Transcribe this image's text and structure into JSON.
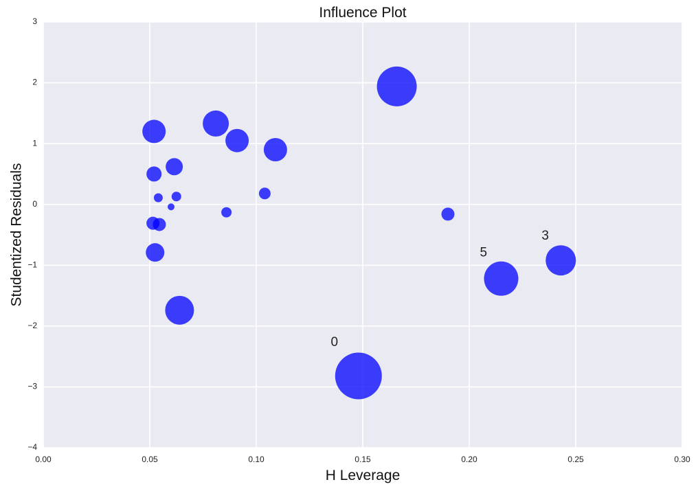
{
  "chart_data": {
    "type": "scatter",
    "title": "Influence Plot",
    "xlabel": "H Leverage",
    "ylabel": "Studentized Residuals",
    "xlim": [
      0.0,
      0.3
    ],
    "ylim": [
      -4,
      3
    ],
    "xticks": [
      0.0,
      0.05,
      0.1,
      0.15,
      0.2,
      0.25,
      0.3
    ],
    "xtick_labels": [
      "0.00",
      "0.05",
      "0.10",
      "0.15",
      "0.20",
      "0.25",
      "0.30"
    ],
    "yticks": [
      -4,
      -3,
      -2,
      -1,
      0,
      1,
      2,
      3
    ],
    "ytick_labels": [
      "−4",
      "−3",
      "−2",
      "−1",
      "0",
      "1",
      "2",
      "3"
    ],
    "grid": true,
    "colors": {
      "background": "#eaeaf2",
      "grid": "#ffffff",
      "marker": "#0000ff"
    },
    "marker_alpha": 0.75,
    "series": [
      {
        "points": [
          {
            "x": 0.148,
            "y": -2.82,
            "size": 34
          },
          {
            "x": 0.166,
            "y": 1.94,
            "size": 29
          },
          {
            "x": 0.215,
            "y": -1.22,
            "size": 25
          },
          {
            "x": 0.243,
            "y": -0.92,
            "size": 22
          },
          {
            "x": 0.081,
            "y": 1.33,
            "size": 19
          },
          {
            "x": 0.064,
            "y": -1.74,
            "size": 21
          },
          {
            "x": 0.052,
            "y": 1.2,
            "size": 17
          },
          {
            "x": 0.091,
            "y": 1.05,
            "size": 17
          },
          {
            "x": 0.109,
            "y": 0.9,
            "size": 17
          },
          {
            "x": 0.0615,
            "y": 0.62,
            "size": 12.5
          },
          {
            "x": 0.052,
            "y": 0.5,
            "size": 11
          },
          {
            "x": 0.0525,
            "y": -0.79,
            "size": 13.5
          },
          {
            "x": 0.0515,
            "y": -0.31,
            "size": 9.5
          },
          {
            "x": 0.0545,
            "y": -0.33,
            "size": 9.5
          },
          {
            "x": 0.054,
            "y": 0.11,
            "size": 6.5
          },
          {
            "x": 0.0625,
            "y": 0.13,
            "size": 7
          },
          {
            "x": 0.06,
            "y": -0.04,
            "size": 5
          },
          {
            "x": 0.086,
            "y": -0.13,
            "size": 7.5
          },
          {
            "x": 0.104,
            "y": 0.18,
            "size": 8.5
          },
          {
            "x": 0.19,
            "y": -0.16,
            "size": 9.5
          }
        ]
      }
    ],
    "annotations": [
      {
        "text": "0",
        "x": 0.135,
        "y": -2.27
      },
      {
        "text": "5",
        "x": 0.205,
        "y": -0.8
      },
      {
        "text": "3",
        "x": 0.234,
        "y": -0.52
      }
    ]
  }
}
